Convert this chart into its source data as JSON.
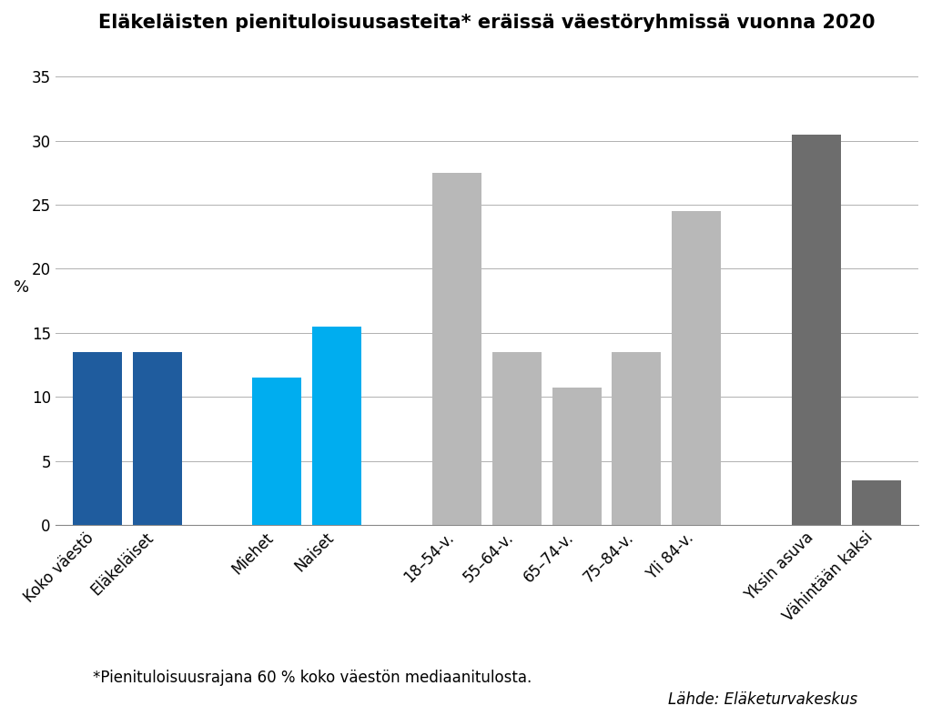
{
  "title": "Eläkeläisten pienituloisuusasteita* eräissä väestöryhmissä vuonna 2020",
  "categories": [
    "Koko väestö",
    "Eläkeläiset",
    "Miehet",
    "Naiset",
    "18–54-v.",
    "55–64-v.",
    "65–74-v.",
    "75–84-v.",
    "Yli 84-v.",
    "Yksin asuva",
    "Vähintään kaksi"
  ],
  "values": [
    13.5,
    13.5,
    11.5,
    15.5,
    27.5,
    13.5,
    10.7,
    13.5,
    24.5,
    30.5,
    3.5
  ],
  "colors": [
    "#1f5c9e",
    "#1f5c9e",
    "#00adef",
    "#00adef",
    "#b8b8b8",
    "#b8b8b8",
    "#b8b8b8",
    "#b8b8b8",
    "#b8b8b8",
    "#6d6d6d",
    "#6d6d6d"
  ],
  "group_gaps": [
    0,
    1,
    3,
    4,
    6,
    7,
    8,
    9,
    10,
    12,
    13
  ],
  "ylabel": "%",
  "ylim": [
    0,
    37
  ],
  "yticks": [
    0,
    5,
    10,
    15,
    20,
    25,
    30,
    35
  ],
  "footnote1": "*Pienituloisuusrajana 60 % koko väestön mediaanitulosta.",
  "footnote2": "Lähde: Eläketurvakeskus",
  "background_color": "#ffffff",
  "grid_color": "#b0b0b0",
  "title_fontsize": 15,
  "ylabel_fontsize": 13,
  "tick_fontsize": 12,
  "footnote_fontsize": 12
}
